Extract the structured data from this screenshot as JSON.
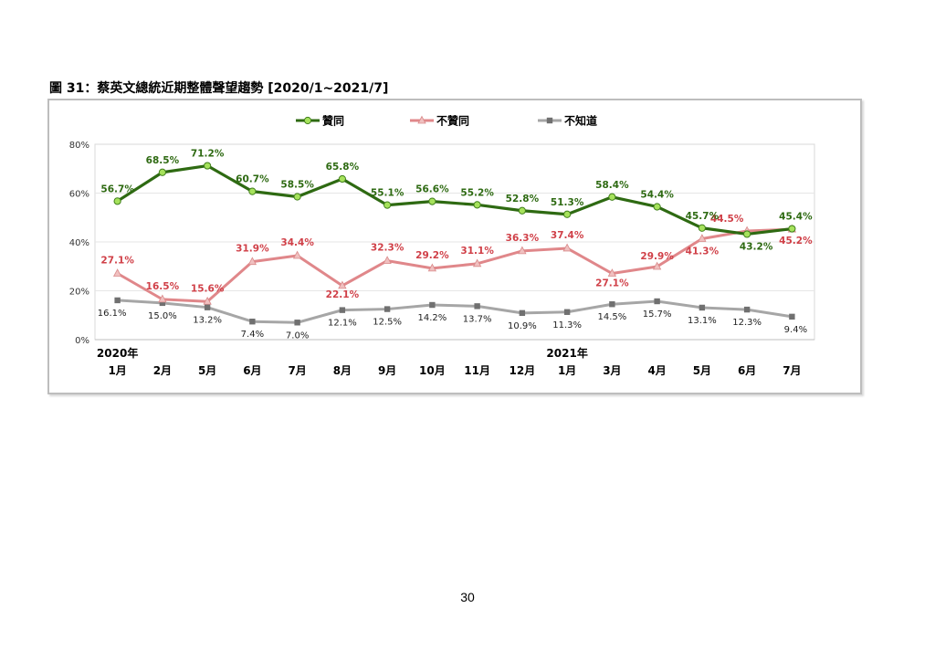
{
  "figure_title": "圖 31：蔡英文總統近期整體聲望趨勢  [2020/1~2021/7]",
  "page_number": "30",
  "chart_data": {
    "type": "line",
    "title": "",
    "xlabel": "",
    "ylabel": "",
    "ylim": [
      0,
      80
    ],
    "yticks": [
      "0%",
      "20%",
      "40%",
      "60%",
      "80%"
    ],
    "grid": true,
    "legend_position": "top",
    "categories": [
      "2020年1月",
      "2月",
      "5月",
      "6月",
      "7月",
      "8月",
      "9月",
      "10月",
      "11月",
      "12月",
      "2021年1月",
      "3月",
      "4月",
      "5月",
      "6月",
      "7月"
    ],
    "x_labels": [
      {
        "year": "2020年",
        "month": "1月"
      },
      {
        "year": "",
        "month": "2月"
      },
      {
        "year": "",
        "month": "5月"
      },
      {
        "year": "",
        "month": "6月"
      },
      {
        "year": "",
        "month": "7月"
      },
      {
        "year": "",
        "month": "8月"
      },
      {
        "year": "",
        "month": "9月"
      },
      {
        "year": "",
        "month": "10月"
      },
      {
        "year": "",
        "month": "11月"
      },
      {
        "year": "",
        "month": "12月"
      },
      {
        "year": "2021年",
        "month": "1月"
      },
      {
        "year": "",
        "month": "3月"
      },
      {
        "year": "",
        "month": "4月"
      },
      {
        "year": "",
        "month": "5月"
      },
      {
        "year": "",
        "month": "6月"
      },
      {
        "year": "",
        "month": "7月"
      }
    ],
    "series": [
      {
        "name": "贊同",
        "color": "#2e6a12",
        "marker_color": "#a6e25c",
        "marker": "circle",
        "values": [
          56.7,
          68.5,
          71.2,
          60.7,
          58.5,
          65.8,
          55.1,
          56.6,
          55.2,
          52.8,
          51.3,
          58.4,
          54.4,
          45.7,
          43.2,
          45.4
        ],
        "labels": [
          "56.7%",
          "68.5%",
          "71.2%",
          "60.7%",
          "58.5%",
          "65.8%",
          "55.1%",
          "56.6%",
          "55.2%",
          "52.8%",
          "51.3%",
          "58.4%",
          "54.4%",
          "45.7%",
          "43.2%",
          "45.4%"
        ]
      },
      {
        "name": "不贊同",
        "color": "#e0878a",
        "marker_color": "#f0c0c0",
        "marker": "triangle",
        "label_color": "#d04048",
        "values": [
          27.1,
          16.5,
          15.6,
          31.9,
          34.4,
          22.1,
          32.3,
          29.2,
          31.1,
          36.3,
          37.4,
          27.1,
          29.9,
          41.3,
          44.5,
          45.2
        ],
        "labels": [
          "27.1%",
          "16.5%",
          "15.6%",
          "31.9%",
          "34.4%",
          "22.1%",
          "32.3%",
          "29.2%",
          "31.1%",
          "36.3%",
          "37.4%",
          "27.1%",
          "29.9%",
          "41.3%",
          "44.5%",
          "45.2%"
        ]
      },
      {
        "name": "不知道",
        "color": "#a6a6a6",
        "marker_color": "#707070",
        "marker": "square",
        "label_color": "#222222",
        "values": [
          16.1,
          15.0,
          13.2,
          7.4,
          7.0,
          12.1,
          12.5,
          14.2,
          13.7,
          10.9,
          11.3,
          14.5,
          15.7,
          13.1,
          12.3,
          9.4
        ],
        "labels": [
          "16.1%",
          "15.0%",
          "13.2%",
          "7.4%",
          "7.0%",
          "12.1%",
          "12.5%",
          "14.2%",
          "13.7%",
          "10.9%",
          "11.3%",
          "14.5%",
          "15.7%",
          "13.1%",
          "12.3%",
          "9.4%"
        ]
      }
    ]
  }
}
